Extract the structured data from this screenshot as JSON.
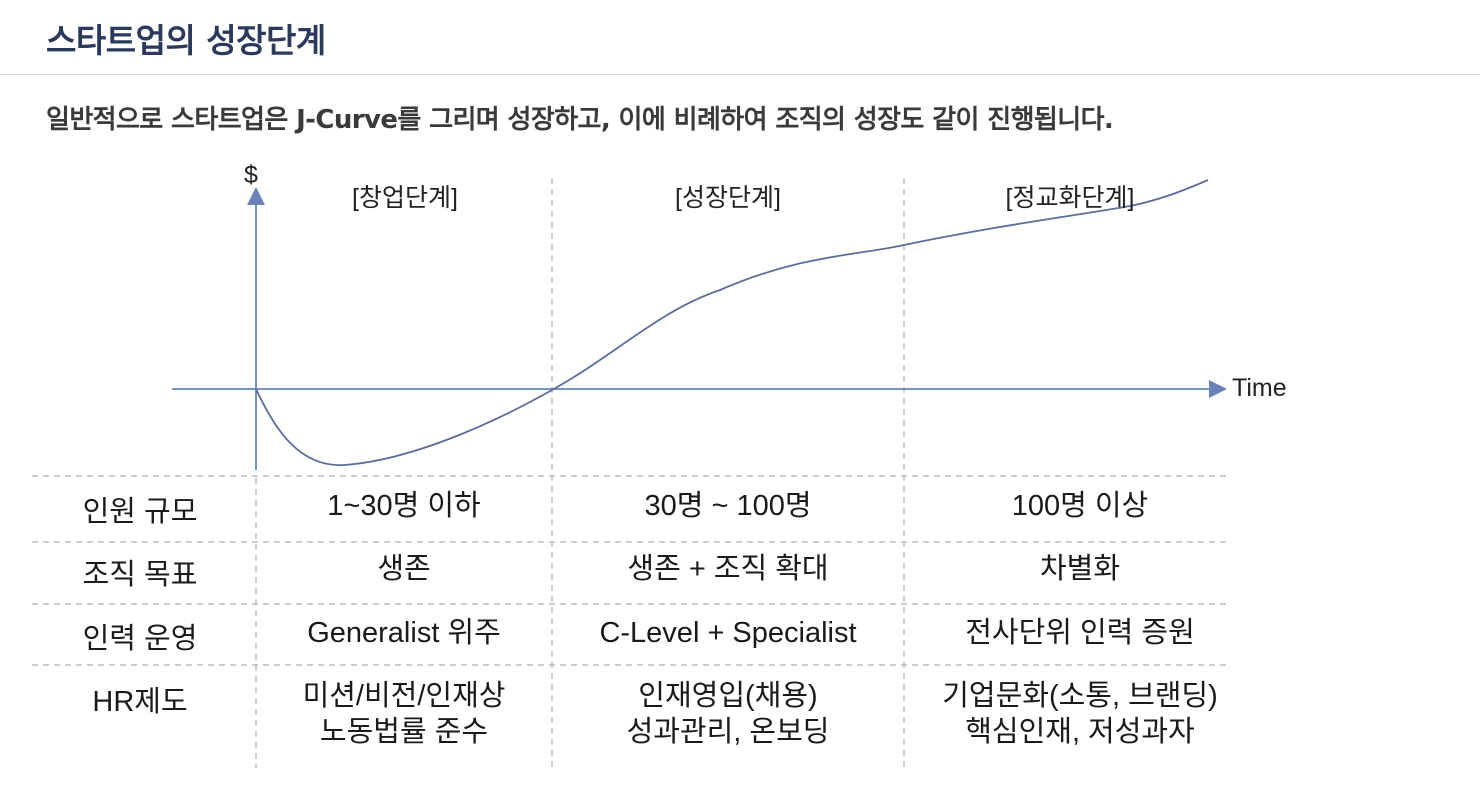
{
  "header": {
    "title": "스타트업의 성장단계",
    "subtitle": "일반적으로 스타트업은 J-Curve를 그리며 성장하고, 이에 비례하여 조직의 성장도 같이 진행됩니다."
  },
  "diagram": {
    "y_axis_label": "$",
    "x_axis_label": "Time",
    "stages": [
      "[창업단계]",
      "[성장단계]",
      "[정교화단계]"
    ],
    "colors": {
      "curve": "#5a6e9c",
      "axis": "#6a82b8",
      "divider": "#bdbdbd"
    }
  },
  "table": {
    "rows": [
      {
        "label": "인원 규모",
        "cells": [
          [
            "1~30명 이하"
          ],
          [
            "30명 ~ 100명"
          ],
          [
            "100명 이상"
          ]
        ]
      },
      {
        "label": "조직 목표",
        "cells": [
          [
            "생존"
          ],
          [
            "생존 + 조직 확대"
          ],
          [
            "차별화"
          ]
        ]
      },
      {
        "label": "인력 운영",
        "cells": [
          [
            "Generalist 위주"
          ],
          [
            "C-Level + Specialist"
          ],
          [
            "전사단위 인력 증원"
          ]
        ]
      },
      {
        "label": "HR제도",
        "cells": [
          [
            "미션/비전/인재상",
            "노동법률 준수"
          ],
          [
            "인재영입(채용)",
            "성과관리, 온보딩"
          ],
          [
            "기업문화(소통, 브랜딩)",
            "핵심인재, 저성과자"
          ]
        ]
      }
    ]
  }
}
